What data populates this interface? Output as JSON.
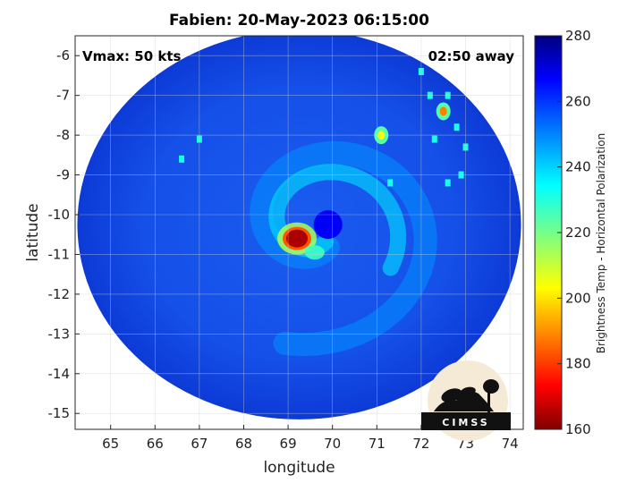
{
  "chart_data": {
    "type": "heatmap",
    "title": "Fabien: 20-May-2023 06:15:00",
    "xlabel": "longitude",
    "ylabel": "latitude",
    "xlim": [
      64.2,
      74.3
    ],
    "ylim": [
      -15.4,
      -5.5
    ],
    "xticks": [
      65,
      66,
      67,
      68,
      69,
      70,
      71,
      72,
      73,
      74
    ],
    "yticks": [
      -6,
      -7,
      -8,
      -9,
      -10,
      -11,
      -12,
      -13,
      -14,
      -15
    ],
    "grid": true,
    "annotations": {
      "top_left": "Vmax: 50 kts",
      "top_right": "02:50 away"
    },
    "colorbar": {
      "label": "Brightness Temp - Horizontal Polarization",
      "range": [
        160,
        280
      ],
      "ticks": [
        280,
        260,
        240,
        220,
        200,
        180,
        160
      ],
      "colormap": "jet"
    },
    "field": {
      "swath_center": [
        69.25,
        -10.25
      ],
      "swath_radius_deg": 5.0,
      "background_value": 262,
      "features": [
        {
          "kind": "cold_core",
          "lon": 69.2,
          "lat": -10.6,
          "value": 165
        },
        {
          "kind": "warm_spot",
          "lon": 69.6,
          "lat": -10.95,
          "value": 228
        },
        {
          "kind": "eye",
          "lon": 69.9,
          "lat": -10.25,
          "value": 266
        },
        {
          "kind": "convection",
          "lon": 72.5,
          "lat": -7.4,
          "value": 190
        },
        {
          "kind": "convection",
          "lon": 71.1,
          "lat": -8.0,
          "value": 205
        }
      ]
    }
  },
  "logo": {
    "text": "CIMSS"
  }
}
